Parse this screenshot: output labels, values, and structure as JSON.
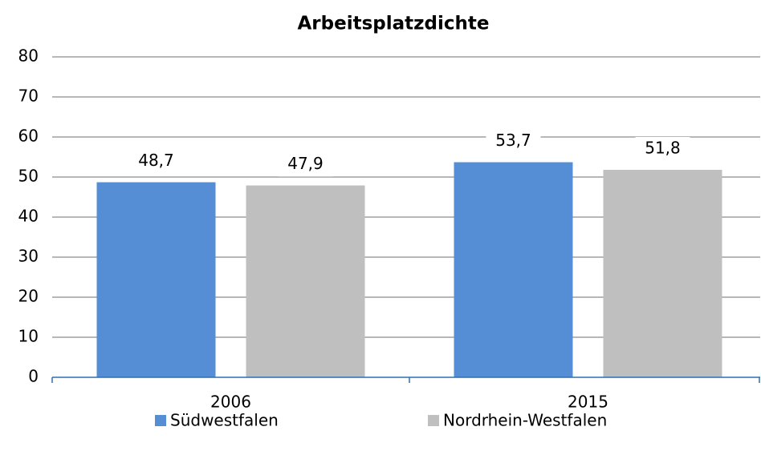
{
  "chart_data": {
    "type": "bar",
    "title": "Arbeitsplatzdichte",
    "categories": [
      "2006",
      "2015"
    ],
    "series": [
      {
        "name": "Südwestfalen",
        "color": "#558ed5",
        "values": [
          48.7,
          53.7
        ],
        "value_labels": [
          "48,7",
          "53,7"
        ]
      },
      {
        "name": "Nordrhein-Westfalen",
        "color": "#bfbfbf",
        "values": [
          47.9,
          51.8
        ],
        "value_labels": [
          "47,9",
          "51,8"
        ]
      }
    ],
    "ylim": [
      0,
      80
    ],
    "yticks": [
      0,
      10,
      20,
      30,
      40,
      50,
      60,
      70,
      80
    ],
    "grid": true,
    "legend": "bottom"
  }
}
